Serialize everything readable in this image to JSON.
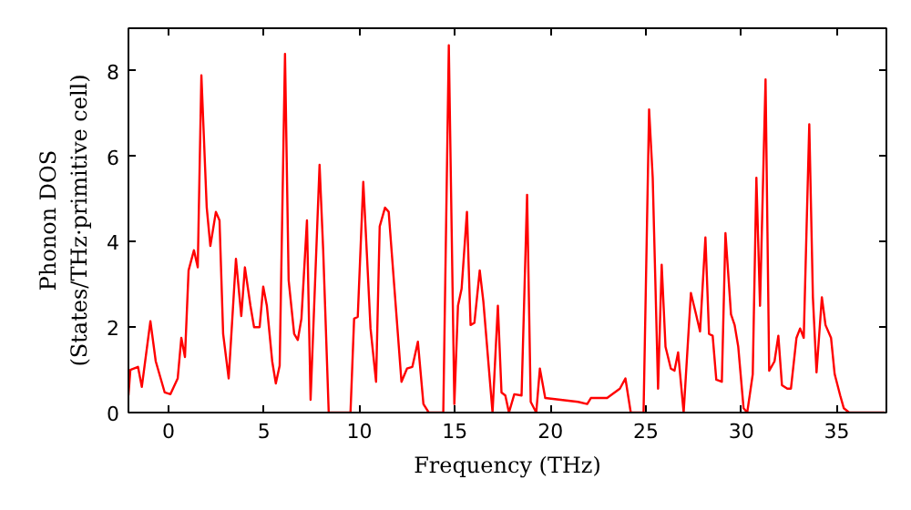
{
  "chart_data": {
    "type": "line",
    "xlabel": "Frequency (THz)",
    "ylabel": "Phonon DOS\n(States/THz·primitive cell)",
    "xlim": [
      -2.1,
      37.6
    ],
    "ylim": [
      0,
      9.0
    ],
    "xticks": [
      0,
      5,
      10,
      15,
      20,
      25,
      30,
      35
    ],
    "yticks": [
      0,
      2,
      4,
      6,
      8
    ],
    "grid": false,
    "series": [
      {
        "color": "#ff0000",
        "x": [
          -2.1,
          -2.0,
          -1.6,
          -1.4,
          -0.95,
          -0.67,
          -0.2,
          0.1,
          0.48,
          0.67,
          0.86,
          1.05,
          1.33,
          1.53,
          1.72,
          2.0,
          2.19,
          2.48,
          2.67,
          2.86,
          3.15,
          3.53,
          3.81,
          4.0,
          4.29,
          4.48,
          4.77,
          4.96,
          5.15,
          5.43,
          5.62,
          5.82,
          6.1,
          6.29,
          6.58,
          6.77,
          6.96,
          7.25,
          7.44,
          7.91,
          8.1,
          8.39,
          9.53,
          9.72,
          9.91,
          10.2,
          10.39,
          10.58,
          10.87,
          11.06,
          11.34,
          11.53,
          12.2,
          12.49,
          12.77,
          13.06,
          13.35,
          13.63,
          14.39,
          14.68,
          14.97,
          15.16,
          15.35,
          15.63,
          15.82,
          16.02,
          16.3,
          16.49,
          16.97,
          17.25,
          17.44,
          17.64,
          17.83,
          18.11,
          18.49,
          18.78,
          18.97,
          19.26,
          19.45,
          19.73,
          21.45,
          21.93,
          22.12,
          22.97,
          23.64,
          23.93,
          24.21,
          24.88,
          25.17,
          25.36,
          25.64,
          25.83,
          26.03,
          26.31,
          26.5,
          26.69,
          26.98,
          27.36,
          27.65,
          27.84,
          28.12,
          28.31,
          28.5,
          28.69,
          28.98,
          29.17,
          29.46,
          29.65,
          29.84,
          30.12,
          30.31,
          30.6,
          30.79,
          30.98,
          31.27,
          31.46,
          31.74,
          31.94,
          32.13,
          32.41,
          32.6,
          32.89,
          33.08,
          33.27,
          33.56,
          33.75,
          33.94,
          34.22,
          34.41,
          34.7,
          34.89,
          35.18,
          35.37,
          35.65,
          37.5
        ],
        "values": [
          0.4,
          1.0,
          1.07,
          0.6,
          2.14,
          1.2,
          0.47,
          0.43,
          0.8,
          1.75,
          1.3,
          3.33,
          3.8,
          3.4,
          7.9,
          4.8,
          3.9,
          4.7,
          4.5,
          1.84,
          0.8,
          3.6,
          2.26,
          3.4,
          2.5,
          2.0,
          2.0,
          2.95,
          2.5,
          1.2,
          0.68,
          1.1,
          8.4,
          3.1,
          1.84,
          1.7,
          2.2,
          4.5,
          0.3,
          5.8,
          3.8,
          0,
          0,
          2.2,
          2.24,
          5.4,
          3.7,
          1.97,
          0.72,
          4.36,
          4.8,
          4.7,
          0.72,
          1.03,
          1.07,
          1.66,
          0.2,
          0,
          0,
          8.6,
          0.2,
          2.5,
          2.9,
          4.7,
          2.05,
          2.1,
          3.33,
          2.6,
          0,
          2.5,
          0.47,
          0.4,
          0,
          0.43,
          0.4,
          5.1,
          0.25,
          0,
          1.03,
          0.34,
          0.25,
          0.2,
          0.34,
          0.34,
          0.56,
          0.8,
          0,
          0,
          7.1,
          5.5,
          0.56,
          3.46,
          1.54,
          1.03,
          0.98,
          1.41,
          0,
          2.8,
          2.26,
          1.9,
          4.1,
          1.84,
          1.8,
          0.77,
          0.72,
          4.2,
          2.3,
          2.05,
          1.54,
          0.1,
          0,
          0.9,
          5.5,
          2.5,
          7.8,
          0.98,
          1.2,
          1.8,
          0.64,
          0.56,
          0.56,
          1.75,
          1.97,
          1.75,
          6.75,
          2.7,
          0.94,
          2.7,
          2.05,
          1.75,
          0.9,
          0.4,
          0.1,
          0,
          0
        ]
      }
    ]
  }
}
